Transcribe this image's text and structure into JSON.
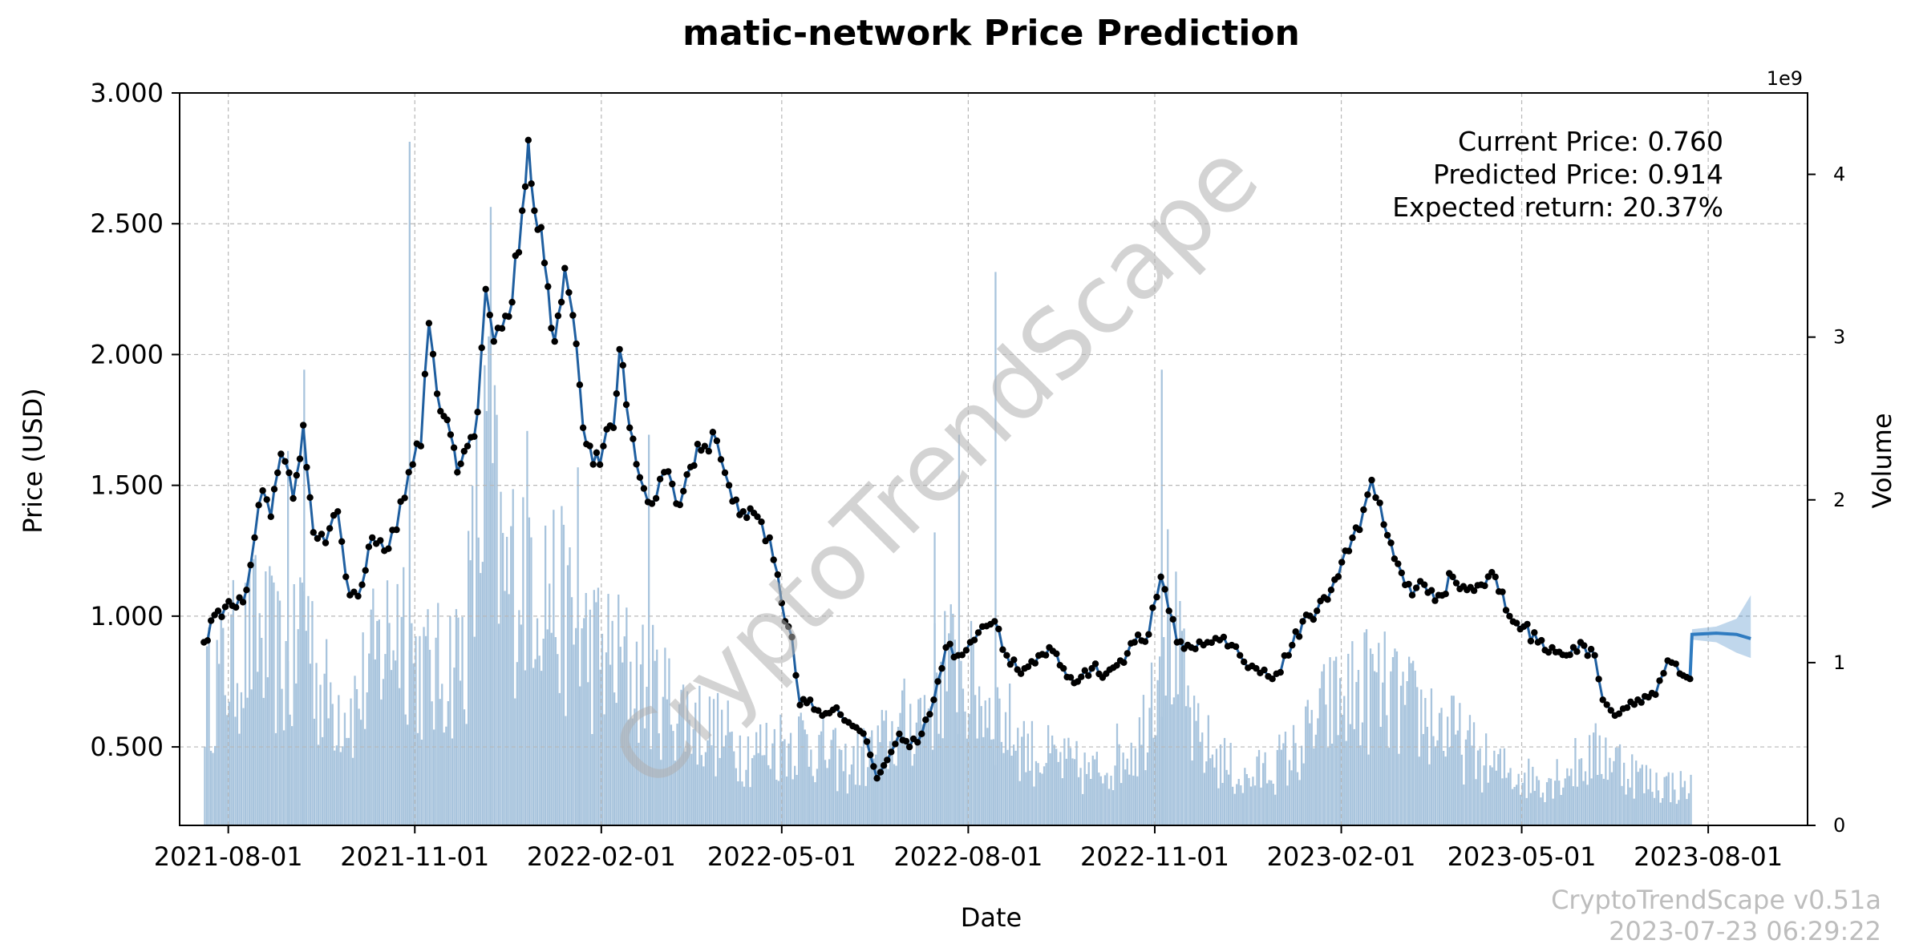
{
  "chart_data": {
    "type": "line",
    "title": "matic-network Price Prediction",
    "xlabel": "Date",
    "ylabel": "Price (USD)",
    "y2label": "Volume",
    "y2_offset_label": "1e9",
    "x_ticks": [
      "2021-08-01",
      "2021-11-01",
      "2022-02-01",
      "2022-05-01",
      "2022-08-01",
      "2022-11-01",
      "2023-02-01",
      "2023-05-01",
      "2023-08-01"
    ],
    "y_ticks": [
      "0.500",
      "1.000",
      "1.500",
      "2.000",
      "2.500",
      "3.000"
    ],
    "y2_ticks": [
      "0",
      "1",
      "2",
      "3",
      "4"
    ],
    "xlim": [
      "2021-07-08",
      "2023-09-19"
    ],
    "ylim": [
      0.2,
      3.0
    ],
    "y2lim": [
      0,
      4.5
    ],
    "grid": true,
    "series": [
      {
        "kind": "line-with-markers",
        "color": "#1f5fa0",
        "points": [
          [
            "2021-07-20",
            0.9
          ],
          [
            "2021-07-27",
            1.02
          ],
          [
            "2021-08-03",
            1.04
          ],
          [
            "2021-08-10",
            1.1
          ],
          [
            "2021-08-14",
            1.3
          ],
          [
            "2021-08-18",
            1.48
          ],
          [
            "2021-08-22",
            1.38
          ],
          [
            "2021-08-27",
            1.62
          ],
          [
            "2021-09-02",
            1.45
          ],
          [
            "2021-09-07",
            1.73
          ],
          [
            "2021-09-12",
            1.32
          ],
          [
            "2021-09-18",
            1.28
          ],
          [
            "2021-09-24",
            1.4
          ],
          [
            "2021-09-30",
            1.08
          ],
          [
            "2021-10-06",
            1.12
          ],
          [
            "2021-10-11",
            1.3
          ],
          [
            "2021-10-17",
            1.25
          ],
          [
            "2021-10-23",
            1.33
          ],
          [
            "2021-10-29",
            1.55
          ],
          [
            "2021-11-04",
            1.65
          ],
          [
            "2021-11-08",
            2.12
          ],
          [
            "2021-11-12",
            1.85
          ],
          [
            "2021-11-17",
            1.75
          ],
          [
            "2021-11-22",
            1.55
          ],
          [
            "2021-11-27",
            1.65
          ],
          [
            "2021-12-02",
            1.78
          ],
          [
            "2021-12-06",
            2.25
          ],
          [
            "2021-12-10",
            2.05
          ],
          [
            "2021-12-14",
            2.1
          ],
          [
            "2021-12-19",
            2.2
          ],
          [
            "2021-12-24",
            2.55
          ],
          [
            "2021-12-27",
            2.82
          ],
          [
            "2021-12-30",
            2.55
          ],
          [
            "2022-01-04",
            2.35
          ],
          [
            "2022-01-09",
            2.05
          ],
          [
            "2022-01-14",
            2.33
          ],
          [
            "2022-01-18",
            2.15
          ],
          [
            "2022-01-23",
            1.72
          ],
          [
            "2022-01-28",
            1.58
          ],
          [
            "2022-02-02",
            1.65
          ],
          [
            "2022-02-07",
            1.72
          ],
          [
            "2022-02-10",
            2.02
          ],
          [
            "2022-02-15",
            1.72
          ],
          [
            "2022-02-20",
            1.53
          ],
          [
            "2022-02-26",
            1.43
          ],
          [
            "2022-03-04",
            1.55
          ],
          [
            "2022-03-10",
            1.43
          ],
          [
            "2022-03-17",
            1.57
          ],
          [
            "2022-03-24",
            1.65
          ],
          [
            "2022-03-30",
            1.67
          ],
          [
            "2022-04-05",
            1.5
          ],
          [
            "2022-04-12",
            1.4
          ],
          [
            "2022-04-19",
            1.38
          ],
          [
            "2022-04-25",
            1.3
          ],
          [
            "2022-05-01",
            1.05
          ],
          [
            "2022-05-06",
            0.92
          ],
          [
            "2022-05-10",
            0.66
          ],
          [
            "2022-05-15",
            0.68
          ],
          [
            "2022-05-21",
            0.62
          ],
          [
            "2022-05-28",
            0.65
          ],
          [
            "2022-06-05",
            0.58
          ],
          [
            "2022-06-12",
            0.52
          ],
          [
            "2022-06-17",
            0.38
          ],
          [
            "2022-06-22",
            0.45
          ],
          [
            "2022-06-28",
            0.55
          ],
          [
            "2022-07-03",
            0.5
          ],
          [
            "2022-07-09",
            0.55
          ],
          [
            "2022-07-15",
            0.68
          ],
          [
            "2022-07-21",
            0.88
          ],
          [
            "2022-07-27",
            0.85
          ],
          [
            "2022-08-02",
            0.9
          ],
          [
            "2022-08-08",
            0.96
          ],
          [
            "2022-08-14",
            0.98
          ],
          [
            "2022-08-20",
            0.85
          ],
          [
            "2022-08-27",
            0.78
          ],
          [
            "2022-09-03",
            0.82
          ],
          [
            "2022-09-10",
            0.88
          ],
          [
            "2022-09-17",
            0.8
          ],
          [
            "2022-09-24",
            0.75
          ],
          [
            "2022-10-01",
            0.8
          ],
          [
            "2022-10-08",
            0.78
          ],
          [
            "2022-10-15",
            0.83
          ],
          [
            "2022-10-22",
            0.9
          ],
          [
            "2022-10-29",
            0.93
          ],
          [
            "2022-11-04",
            1.15
          ],
          [
            "2022-11-08",
            1.02
          ],
          [
            "2022-11-12",
            0.9
          ],
          [
            "2022-11-19",
            0.88
          ],
          [
            "2022-11-27",
            0.9
          ],
          [
            "2022-12-05",
            0.92
          ],
          [
            "2022-12-13",
            0.85
          ],
          [
            "2022-12-21",
            0.8
          ],
          [
            "2022-12-29",
            0.76
          ],
          [
            "2023-01-06",
            0.85
          ],
          [
            "2023-01-13",
            0.98
          ],
          [
            "2023-01-20",
            1.02
          ],
          [
            "2023-01-27",
            1.1
          ],
          [
            "2023-02-03",
            1.25
          ],
          [
            "2023-02-10",
            1.33
          ],
          [
            "2023-02-16",
            1.52
          ],
          [
            "2023-02-22",
            1.35
          ],
          [
            "2023-03-01",
            1.2
          ],
          [
            "2023-03-08",
            1.08
          ],
          [
            "2023-03-14",
            1.12
          ],
          [
            "2023-03-21",
            1.08
          ],
          [
            "2023-03-28",
            1.15
          ],
          [
            "2023-04-04",
            1.1
          ],
          [
            "2023-04-11",
            1.12
          ],
          [
            "2023-04-18",
            1.15
          ],
          [
            "2023-04-25",
            1.0
          ],
          [
            "2023-05-02",
            0.96
          ],
          [
            "2023-05-09",
            0.9
          ],
          [
            "2023-05-16",
            0.88
          ],
          [
            "2023-05-23",
            0.85
          ],
          [
            "2023-05-30",
            0.9
          ],
          [
            "2023-06-06",
            0.85
          ],
          [
            "2023-06-10",
            0.68
          ],
          [
            "2023-06-16",
            0.62
          ],
          [
            "2023-06-22",
            0.65
          ],
          [
            "2023-06-29",
            0.67
          ],
          [
            "2023-07-06",
            0.7
          ],
          [
            "2023-07-12",
            0.83
          ],
          [
            "2023-07-18",
            0.78
          ],
          [
            "2023-07-23",
            0.76
          ]
        ]
      },
      {
        "kind": "forecast",
        "color": "#2f7bc0",
        "points": [
          [
            "2023-07-23",
            0.76
          ],
          [
            "2023-07-24",
            0.93
          ],
          [
            "2023-08-05",
            0.935
          ],
          [
            "2023-08-15",
            0.93
          ],
          [
            "2023-08-22",
            0.914
          ]
        ],
        "band_low": [
          [
            "2023-07-24",
            0.91
          ],
          [
            "2023-08-05",
            0.9
          ],
          [
            "2023-08-15",
            0.86
          ],
          [
            "2023-08-22",
            0.84
          ]
        ],
        "band_high": [
          [
            "2023-07-24",
            0.95
          ],
          [
            "2023-08-05",
            0.96
          ],
          [
            "2023-08-15",
            0.99
          ],
          [
            "2023-08-22",
            1.08
          ]
        ]
      }
    ],
    "volume_series": {
      "color": "#a8c4dd",
      "unit_scale": "1e9",
      "samples": [
        [
          "2021-07-20",
          0.9
        ],
        [
          "2021-08-01",
          1.1
        ],
        [
          "2021-08-15",
          1.3
        ],
        [
          "2021-09-01",
          1.0
        ],
        [
          "2021-09-07",
          1.6
        ],
        [
          "2021-09-15",
          0.9
        ],
        [
          "2021-10-01",
          0.8
        ],
        [
          "2021-10-25",
          1.5
        ],
        [
          "2021-11-01",
          1.1
        ],
        [
          "2021-11-10",
          1.0
        ],
        [
          "2021-11-25",
          1.2
        ],
        [
          "2021-12-06",
          2.5
        ],
        [
          "2021-12-15",
          1.6
        ],
        [
          "2021-12-27",
          1.9
        ],
        [
          "2022-01-10",
          1.5
        ],
        [
          "2022-01-25",
          1.2
        ],
        [
          "2022-02-10",
          1.1
        ],
        [
          "2022-03-01",
          0.9
        ],
        [
          "2022-03-20",
          0.7
        ],
        [
          "2022-04-15",
          0.5
        ],
        [
          "2022-05-10",
          0.6
        ],
        [
          "2022-06-01",
          0.4
        ],
        [
          "2022-06-15",
          0.5
        ],
        [
          "2022-07-10",
          0.8
        ],
        [
          "2022-07-20",
          1.1
        ],
        [
          "2022-08-05",
          0.9
        ],
        [
          "2022-09-01",
          0.5
        ],
        [
          "2022-10-01",
          0.35
        ],
        [
          "2022-10-25",
          0.6
        ],
        [
          "2022-11-06",
          1.5
        ],
        [
          "2022-11-20",
          0.6
        ],
        [
          "2022-12-15",
          0.3
        ],
        [
          "2023-01-10",
          0.5
        ],
        [
          "2023-01-25",
          0.8
        ],
        [
          "2023-02-15",
          0.95
        ],
        [
          "2023-03-05",
          0.8
        ],
        [
          "2023-03-20",
          0.7
        ],
        [
          "2023-04-15",
          0.4
        ],
        [
          "2023-05-10",
          0.3
        ],
        [
          "2023-06-10",
          0.5
        ],
        [
          "2023-07-01",
          0.3
        ],
        [
          "2023-07-23",
          0.25
        ]
      ],
      "spikes": [
        [
          "2021-10-29",
          4.2
        ],
        [
          "2021-12-08",
          3.8
        ],
        [
          "2022-07-27",
          2.4
        ],
        [
          "2022-08-14",
          3.4
        ],
        [
          "2022-11-04",
          2.8
        ],
        [
          "2021-09-07",
          2.8
        ],
        [
          "2021-08-30",
          2.3
        ],
        [
          "2022-01-20",
          2.2
        ],
        [
          "2022-02-24",
          2.4
        ],
        [
          "2022-07-15",
          1.8
        ]
      ]
    },
    "annotations": [
      "Current Price: 0.760",
      "Predicted Price: 0.914",
      "Expected return: 20.37%"
    ],
    "watermark": "CryptoTrendScape",
    "footer": [
      "CryptoTrendScape v0.51a",
      "2023-07-23 06:29:22"
    ]
  }
}
